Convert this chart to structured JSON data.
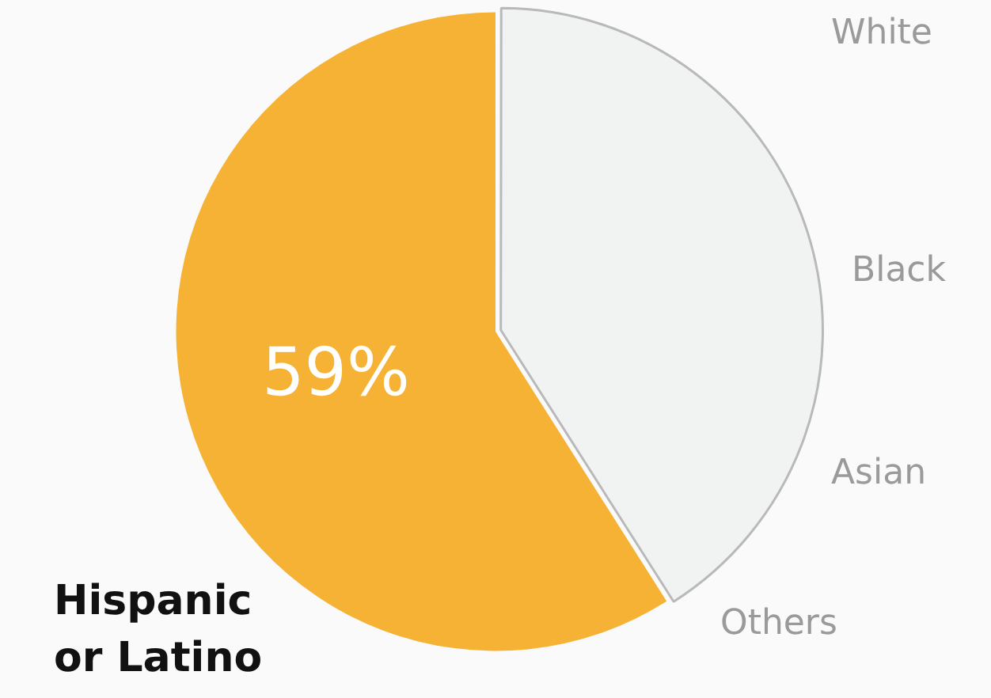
{
  "chart_data": {
    "type": "pie",
    "categories": [
      "Hispanic or Latino",
      null
    ],
    "values": [
      59,
      41
    ],
    "colors": [
      "#f6b234",
      "#f1f3f3"
    ],
    "value_labels": [
      "59%",
      null
    ],
    "annotations": [
      "White",
      "Black",
      "Asian",
      "Others"
    ]
  }
}
